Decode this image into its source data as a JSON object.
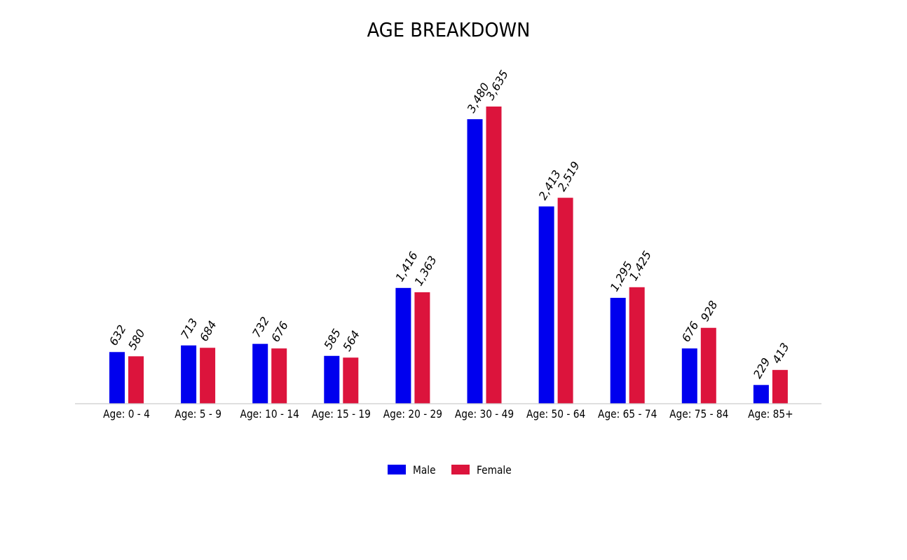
{
  "chart_data": {
    "type": "bar",
    "title": "AGE BREAKDOWN",
    "xlabel": "",
    "ylabel": "",
    "categories": [
      "Age: 0 - 4",
      "Age: 5 - 9",
      "Age: 10 - 14",
      "Age: 15 - 19",
      "Age: 20 - 29",
      "Age: 30 - 49",
      "Age: 50 - 64",
      "Age: 65 - 74",
      "Age: 75 - 84",
      "Age: 85+"
    ],
    "series": [
      {
        "name": "Male",
        "color": "#0000ee",
        "values": [
          632,
          713,
          732,
          585,
          1416,
          3480,
          2413,
          1295,
          676,
          229
        ]
      },
      {
        "name": "Female",
        "color": "#dc143c",
        "values": [
          580,
          684,
          676,
          564,
          1363,
          3635,
          2519,
          1425,
          928,
          413
        ]
      }
    ],
    "data_labels": [
      [
        "632",
        "713",
        "732",
        "585",
        "1,416",
        "3,480",
        "2,413",
        "1,295",
        "676",
        "229"
      ],
      [
        "580",
        "684",
        "676",
        "564",
        "1,363",
        "3,635",
        "2,519",
        "1,425",
        "928",
        "413"
      ]
    ],
    "ylim": [
      0,
      3650
    ],
    "grid": false,
    "legend": "bottom-center"
  }
}
